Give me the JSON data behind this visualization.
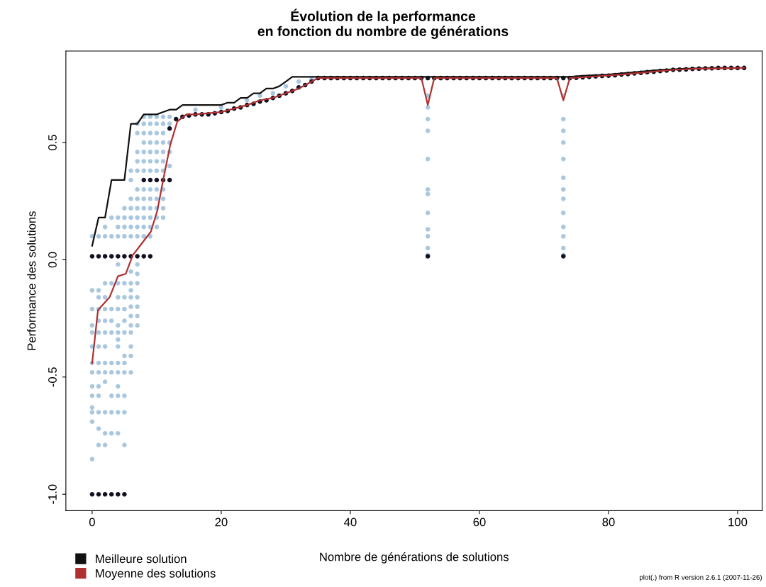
{
  "chart_data": {
    "type": "scatter",
    "title": "Évolution de la performance\nen fonction du nombre de générations",
    "xlabel": "Nombre de générations de solutions",
    "ylabel": "Performance des solutions",
    "xlim": [
      -4.07,
      103.8
    ],
    "ylim": [
      -1.07,
      0.89
    ],
    "xticks": [
      0,
      20,
      40,
      60,
      80,
      100
    ],
    "yticks": [
      {
        "value": -1.0,
        "label": "-1.0"
      },
      {
        "value": -0.5,
        "label": "-0.5"
      },
      {
        "value": 0.0,
        "label": "0.0"
      },
      {
        "value": 0.5,
        "label": "0.5"
      }
    ],
    "grid": false,
    "legend": "bottom left",
    "annotations": [
      "plot(.) from R version 2.6.1 (2007-11-26)"
    ],
    "series": [
      {
        "color": "#a9c8e0",
        "marker": "circle",
        "x": [
          0,
          0,
          0,
          0,
          0,
          0,
          0,
          0,
          0,
          0,
          0,
          0,
          0,
          0,
          1,
          1,
          1,
          1,
          1,
          1,
          1,
          1,
          1,
          1,
          1,
          1,
          1,
          1,
          2,
          2,
          2,
          2,
          2,
          2,
          2,
          2,
          2,
          2,
          2,
          2,
          2,
          2,
          3,
          3,
          3,
          3,
          3,
          3,
          3,
          3,
          3,
          3,
          3,
          4,
          4,
          4,
          4,
          4,
          4,
          4,
          4,
          4,
          4,
          4,
          4,
          4,
          4,
          4,
          4,
          4,
          5,
          5,
          5,
          5,
          5,
          5,
          5,
          5,
          5,
          5,
          5,
          5,
          5,
          5,
          5,
          6,
          6,
          6,
          6,
          6,
          6,
          6,
          6,
          6,
          6,
          6,
          6,
          6,
          6,
          6,
          6,
          6,
          6,
          7,
          7,
          7,
          7,
          7,
          7,
          7,
          7,
          7,
          7,
          7,
          7,
          7,
          7,
          7,
          7,
          7,
          7,
          8,
          8,
          8,
          8,
          8,
          8,
          8,
          8,
          8,
          8,
          8,
          8,
          8,
          9,
          9,
          9,
          9,
          9,
          9,
          9,
          9,
          9,
          9,
          9,
          9,
          9,
          10,
          10,
          10,
          10,
          10,
          10,
          10,
          10,
          10,
          10,
          10,
          10,
          11,
          11,
          11,
          11,
          11,
          11,
          11,
          11,
          11,
          11,
          11,
          12,
          12,
          12,
          12,
          12,
          16,
          20,
          24,
          26,
          28,
          30,
          32,
          34,
          52,
          52,
          52,
          52,
          52,
          52,
          52,
          52,
          52,
          52,
          52,
          52,
          73,
          73,
          73,
          73,
          73,
          73,
          73,
          73,
          73,
          73,
          73,
          73,
          73
        ],
        "values": [
          -0.13,
          -0.21,
          -0.28,
          -0.31,
          -0.37,
          -0.44,
          -0.48,
          -0.54,
          -0.58,
          -0.63,
          -0.65,
          -0.69,
          -0.85,
          0.1,
          -0.13,
          -0.16,
          -0.21,
          -0.26,
          -0.31,
          -0.37,
          -0.44,
          -0.48,
          -0.54,
          -0.58,
          -0.65,
          -0.72,
          -0.79,
          0.1,
          -0.1,
          -0.16,
          -0.21,
          -0.26,
          -0.31,
          -0.37,
          -0.44,
          -0.48,
          -0.52,
          -0.65,
          -0.74,
          -0.79,
          0.1,
          0.14,
          -0.1,
          -0.21,
          -0.26,
          -0.31,
          -0.44,
          -0.48,
          -0.58,
          -0.65,
          -0.74,
          0.1,
          0.18,
          -0.02,
          -0.1,
          -0.16,
          -0.21,
          -0.28,
          -0.31,
          -0.34,
          -0.37,
          -0.44,
          -0.48,
          -0.54,
          -0.58,
          -0.65,
          -0.74,
          0.1,
          0.14,
          0.18,
          -0.1,
          -0.16,
          -0.21,
          -0.26,
          -0.31,
          -0.41,
          -0.44,
          -0.48,
          -0.58,
          -0.65,
          -0.79,
          0.1,
          0.14,
          0.18,
          0.22,
          -0.05,
          -0.1,
          -0.13,
          -0.16,
          -0.2,
          -0.24,
          -0.28,
          -0.31,
          -0.37,
          -0.41,
          -0.48,
          0.1,
          0.14,
          0.18,
          0.22,
          0.26,
          0.34,
          0.38,
          -0.02,
          -0.06,
          -0.1,
          -0.16,
          -0.2,
          -0.24,
          -0.28,
          0.1,
          0.14,
          0.18,
          0.22,
          0.26,
          0.3,
          0.38,
          0.42,
          0.46,
          0.54,
          0.58,
          0.1,
          0.14,
          0.18,
          0.22,
          0.26,
          0.3,
          0.38,
          0.42,
          0.46,
          0.5,
          0.54,
          0.58,
          0.61,
          0.1,
          0.14,
          0.18,
          0.22,
          0.26,
          0.3,
          0.38,
          0.42,
          0.46,
          0.5,
          0.54,
          0.58,
          0.61,
          0.14,
          0.18,
          0.22,
          0.26,
          0.3,
          0.38,
          0.42,
          0.46,
          0.5,
          0.54,
          0.58,
          0.61,
          0.18,
          0.22,
          0.26,
          0.3,
          0.38,
          0.42,
          0.46,
          0.5,
          0.54,
          0.58,
          0.61,
          0.4,
          0.46,
          0.5,
          0.58,
          0.61,
          0.64,
          0.65,
          0.68,
          0.7,
          0.71,
          0.74,
          0.76,
          0.77,
          0.02,
          0.05,
          0.1,
          0.13,
          0.2,
          0.28,
          0.3,
          0.43,
          0.55,
          0.6,
          0.65,
          0.7,
          0.02,
          0.05,
          0.1,
          0.14,
          0.2,
          0.26,
          0.3,
          0.35,
          0.43,
          0.5,
          0.55,
          0.6,
          0.7
        ]
      },
      {
        "color": "#111122",
        "marker": "circle",
        "x": [
          0,
          1,
          2,
          3,
          4,
          5,
          6,
          7,
          8,
          9,
          0,
          1,
          2,
          3,
          4,
          5,
          8,
          9,
          10,
          11,
          12,
          12,
          13,
          14,
          15,
          16,
          17,
          18,
          19,
          20,
          21,
          22,
          23,
          24,
          25,
          26,
          27,
          28,
          29,
          30,
          31,
          32,
          33,
          34,
          35,
          36,
          37,
          38,
          39,
          40,
          41,
          42,
          43,
          44,
          45,
          46,
          47,
          48,
          49,
          50,
          51,
          52,
          53,
          54,
          55,
          56,
          57,
          58,
          59,
          60,
          61,
          62,
          63,
          64,
          65,
          66,
          67,
          68,
          69,
          70,
          71,
          72,
          52,
          73,
          73,
          74,
          75,
          76,
          77,
          78,
          79,
          80,
          81,
          82,
          83,
          84,
          85,
          86,
          87,
          88,
          89,
          90,
          91,
          92,
          93,
          94,
          95,
          96,
          97,
          98,
          99,
          100,
          101
        ],
        "values": [
          0.015,
          0.015,
          0.015,
          0.015,
          0.015,
          0.015,
          0.015,
          0.015,
          0.015,
          0.015,
          -1.0,
          -1.0,
          -1.0,
          -1.0,
          -1.0,
          -1.0,
          0.34,
          0.34,
          0.34,
          0.34,
          0.34,
          0.56,
          0.6,
          0.61,
          0.615,
          0.62,
          0.62,
          0.62,
          0.625,
          0.63,
          0.635,
          0.645,
          0.65,
          0.66,
          0.665,
          0.675,
          0.68,
          0.69,
          0.7,
          0.71,
          0.72,
          0.735,
          0.745,
          0.76,
          0.775,
          0.775,
          0.775,
          0.775,
          0.775,
          0.775,
          0.775,
          0.775,
          0.775,
          0.775,
          0.775,
          0.775,
          0.775,
          0.775,
          0.775,
          0.775,
          0.775,
          0.775,
          0.775,
          0.775,
          0.775,
          0.775,
          0.775,
          0.775,
          0.775,
          0.775,
          0.775,
          0.775,
          0.775,
          0.775,
          0.775,
          0.775,
          0.775,
          0.775,
          0.775,
          0.775,
          0.775,
          0.775,
          0.015,
          0.015,
          0.775,
          0.775,
          0.776,
          0.778,
          0.78,
          0.782,
          0.784,
          0.785,
          0.787,
          0.79,
          0.792,
          0.795,
          0.797,
          0.8,
          0.802,
          0.805,
          0.807,
          0.81,
          0.811,
          0.812,
          0.814,
          0.815,
          0.816,
          0.817,
          0.818,
          0.818,
          0.818,
          0.818,
          0.818
        ]
      },
      {
        "type": "line",
        "name": "Meilleure solution",
        "color": "#111111",
        "marker": "none",
        "x": [
          0,
          1,
          2,
          3,
          4,
          5,
          6,
          7,
          8,
          9,
          10,
          11,
          12,
          13,
          14,
          15,
          20,
          21,
          22,
          23,
          24,
          25,
          26,
          27,
          28,
          29,
          30,
          31,
          35,
          74,
          76,
          80,
          84,
          88,
          92,
          96,
          101
        ],
        "values": [
          0.06,
          0.18,
          0.18,
          0.34,
          0.34,
          0.34,
          0.58,
          0.58,
          0.62,
          0.62,
          0.62,
          0.63,
          0.64,
          0.64,
          0.66,
          0.66,
          0.66,
          0.67,
          0.67,
          0.69,
          0.69,
          0.71,
          0.71,
          0.73,
          0.73,
          0.74,
          0.76,
          0.78,
          0.78,
          0.78,
          0.785,
          0.79,
          0.8,
          0.81,
          0.815,
          0.818,
          0.818
        ]
      },
      {
        "type": "line",
        "name": "Moyenne des solutions",
        "color": "#b03030",
        "marker": "none",
        "x": [
          0,
          0.9,
          2.7,
          4,
          5.2,
          6.3,
          7.7,
          9.1,
          10.1,
          11,
          12.1,
          13.2,
          14.6,
          16,
          18,
          20,
          22,
          24,
          26,
          28,
          30,
          32,
          34,
          35,
          51,
          52,
          53,
          72,
          73,
          74,
          78,
          82,
          86,
          90,
          94,
          101
        ],
        "values": [
          -0.44,
          -0.215,
          -0.16,
          -0.07,
          -0.06,
          0.02,
          0.07,
          0.12,
          0.21,
          0.34,
          0.49,
          0.59,
          0.62,
          0.62,
          0.625,
          0.63,
          0.645,
          0.66,
          0.68,
          0.69,
          0.71,
          0.73,
          0.76,
          0.775,
          0.775,
          0.66,
          0.775,
          0.775,
          0.68,
          0.775,
          0.782,
          0.79,
          0.8,
          0.81,
          0.815,
          0.818
        ]
      }
    ]
  }
}
